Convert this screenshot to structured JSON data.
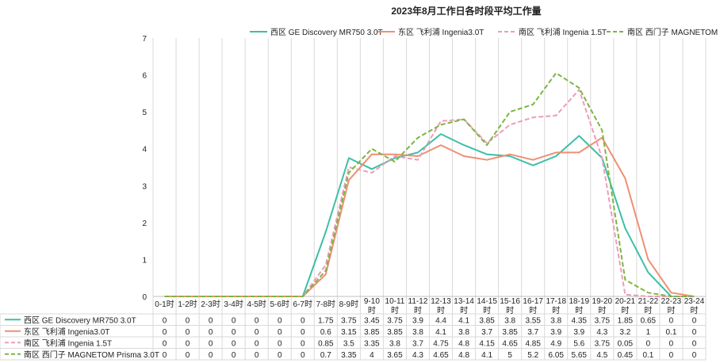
{
  "chart_data": {
    "type": "line",
    "title": "2023年8月工作日各时段平均工作量",
    "xlabel": "",
    "ylabel": "",
    "ylim": [
      0,
      7
    ],
    "yticks": [
      0,
      1,
      2,
      3,
      4,
      5,
      6,
      7
    ],
    "grid": "vertical",
    "legend_position": "top-right",
    "data_table": true,
    "categories": [
      [
        "0-1时"
      ],
      [
        "1-2时"
      ],
      [
        "2-3时"
      ],
      [
        "3-4时"
      ],
      [
        "4-5时"
      ],
      [
        "5-6时"
      ],
      [
        "6-7时"
      ],
      [
        "7-8时"
      ],
      [
        "8-9时"
      ],
      [
        "9-10",
        "时"
      ],
      [
        "10-11",
        "时"
      ],
      [
        "11-12",
        "时"
      ],
      [
        "12-13",
        "时"
      ],
      [
        "13-14",
        "时"
      ],
      [
        "14-15",
        "时"
      ],
      [
        "15-16",
        "时"
      ],
      [
        "16-17",
        "时"
      ],
      [
        "17-18",
        "时"
      ],
      [
        "18-19",
        "时"
      ],
      [
        "19-20",
        "时"
      ],
      [
        "20-21",
        "时"
      ],
      [
        "21-22",
        "时"
      ],
      [
        "22-23",
        "时"
      ],
      [
        "23-24",
        "时"
      ]
    ],
    "series": [
      {
        "name": "西区 GE Discovery MR750 3.0T",
        "color": "#3dbfa6",
        "dash": "solid",
        "values": [
          0,
          0,
          0,
          0,
          0,
          0,
          0,
          1.75,
          3.75,
          3.45,
          3.75,
          3.9,
          4.4,
          4.1,
          3.85,
          3.8,
          3.55,
          3.8,
          4.35,
          3.75,
          1.85,
          0.65,
          0,
          0
        ],
        "labels": [
          "0",
          "0",
          "0",
          "0",
          "0",
          "0",
          "0",
          "1.75",
          "3.75",
          "3.45",
          "3.75",
          "3.9",
          "4.4",
          "4.1",
          "3.85",
          "3.8",
          "3.55",
          "3.8",
          "4.35",
          "3.75",
          "1.85",
          "0.65",
          "0",
          "0"
        ]
      },
      {
        "name": "东区 飞利浦 Ingenia3.0T",
        "color": "#ef8f74",
        "dash": "solid",
        "values": [
          0,
          0,
          0,
          0,
          0,
          0,
          0,
          0.6,
          3.15,
          3.85,
          3.85,
          3.8,
          4.1,
          3.8,
          3.7,
          3.85,
          3.7,
          3.9,
          3.9,
          4.3,
          3.2,
          1,
          0.1,
          0
        ],
        "labels": [
          "0",
          "0",
          "0",
          "0",
          "0",
          "0",
          "0",
          "0.6",
          "3.15",
          "3.85",
          "3.85",
          "3.8",
          "4.1",
          "3.8",
          "3.7",
          "3.85",
          "3.7",
          "3.9",
          "3.9",
          "4.3",
          "3.2",
          "1",
          "0.1",
          "0"
        ]
      },
      {
        "name": "南区 飞利浦 Ingenia 1.5T",
        "color": "#ee9cba",
        "dash": "dashed",
        "values": [
          0,
          0,
          0,
          0,
          0,
          0,
          0,
          0.85,
          3.5,
          3.35,
          3.8,
          3.7,
          4.75,
          4.8,
          4.15,
          4.65,
          4.85,
          4.9,
          5.6,
          3.75,
          0.05,
          0,
          0,
          0
        ],
        "labels": [
          "0",
          "0",
          "0",
          "0",
          "0",
          "0",
          "0",
          "0.85",
          "3.5",
          "3.35",
          "3.8",
          "3.7",
          "4.75",
          "4.8",
          "4.15",
          "4.65",
          "4.85",
          "4.9",
          "5.6",
          "3.75",
          "0.05",
          "0",
          "0",
          "0"
        ]
      },
      {
        "name": "南区 西门子 MAGNETOM Prisma 3.0T",
        "color": "#7db543",
        "dash": "dashed",
        "values": [
          0,
          0,
          0,
          0,
          0,
          0,
          0,
          0.7,
          3.35,
          4,
          3.65,
          4.3,
          4.65,
          4.8,
          4.1,
          5,
          5.2,
          6.05,
          5.65,
          4.5,
          0.45,
          0.1,
          0,
          0
        ],
        "labels": [
          "0",
          "0",
          "0",
          "0",
          "0",
          "0",
          "0",
          "0.7",
          "3.35",
          "4",
          "3.65",
          "4.3",
          "4.65",
          "4.8",
          "4.1",
          "5",
          "5.2",
          "6.05",
          "5.65",
          "4.5",
          "0.45",
          "0.1",
          "0",
          "0"
        ]
      }
    ]
  }
}
